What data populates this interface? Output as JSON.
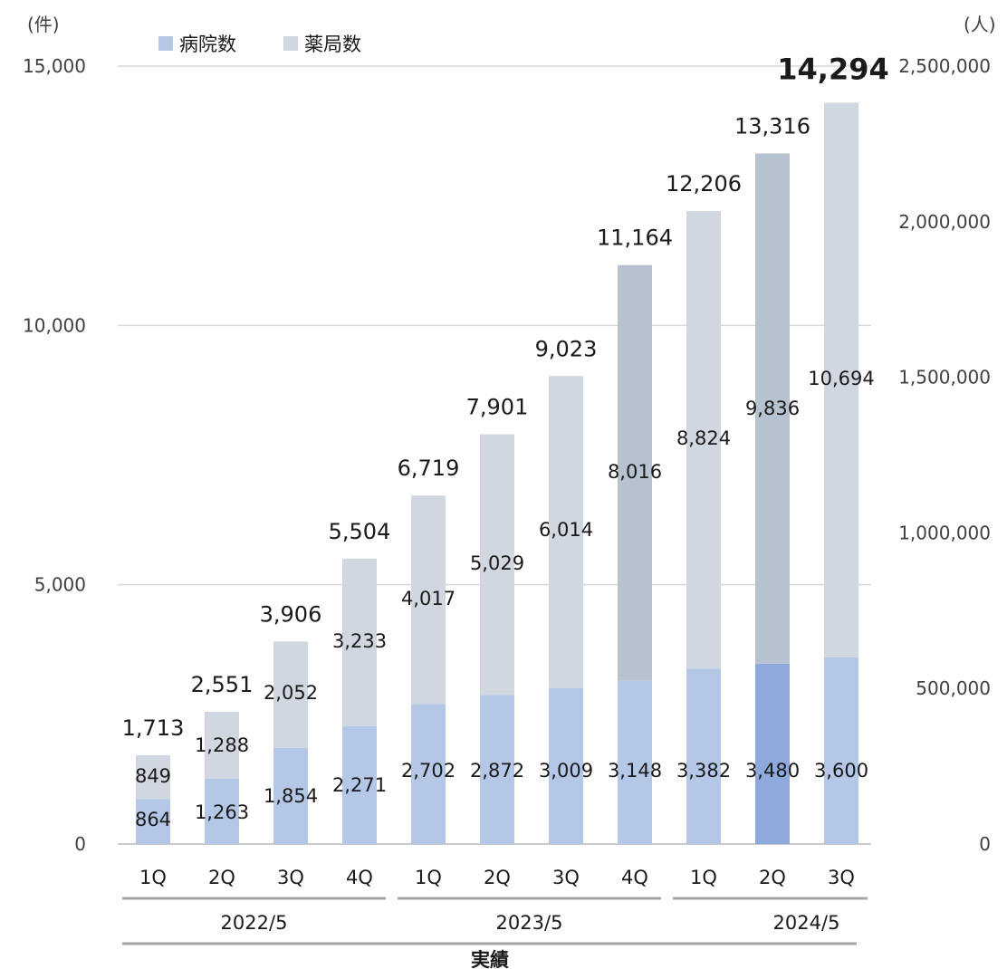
{
  "chart_data": {
    "type": "bar",
    "stacked": true,
    "left_axis_unit": "(件)",
    "right_axis_unit": "(人)",
    "left_ylim": [
      0,
      15000
    ],
    "left_ticks": [
      "0",
      "5,000",
      "10,000",
      "15,000"
    ],
    "right_ylim": [
      0,
      2500000
    ],
    "right_ticks": [
      "0",
      "500,000",
      "1,000,000",
      "1,500,000",
      "2,000,000",
      "2,500,000"
    ],
    "grid": true,
    "legend_position": "top-left",
    "categories": [
      "1Q",
      "2Q",
      "3Q",
      "4Q",
      "1Q",
      "2Q",
      "3Q",
      "4Q",
      "1Q",
      "2Q",
      "3Q"
    ],
    "fiscal_years": [
      {
        "label": "2022/5",
        "start": 0,
        "end": 3
      },
      {
        "label": "2023/5",
        "start": 4,
        "end": 7
      },
      {
        "label": "2024/5",
        "start": 8,
        "end": 10
      }
    ],
    "group_label": "実績",
    "series": [
      {
        "name": "病院数",
        "color": "#b4c7e7",
        "values": [
          864,
          1263,
          1854,
          2271,
          2702,
          2872,
          3009,
          3148,
          3382,
          3480,
          3600
        ],
        "labels": [
          "864",
          "1,263",
          "1,854",
          "2,271",
          "2,702",
          "2,872",
          "3,009",
          "3,148",
          "3,382",
          "3,480",
          "3,600"
        ]
      },
      {
        "name": "薬局数",
        "color": "#d0d7e0",
        "values": [
          849,
          1288,
          2052,
          3233,
          4017,
          5029,
          6014,
          8016,
          8824,
          9836,
          10694
        ],
        "labels": [
          "849",
          "1,288",
          "2,052",
          "3,233",
          "4,017",
          "5,029",
          "6,014",
          "8,016",
          "8,824",
          "9,836",
          "10,694"
        ]
      }
    ],
    "totals": [
      1713,
      2551,
      3906,
      5504,
      6719,
      7901,
      9023,
      11164,
      12206,
      13316,
      14294
    ],
    "total_labels": [
      "1,713",
      "2,551",
      "3,906",
      "5,504",
      "6,719",
      "7,901",
      "9,023",
      "11,164",
      "12,206",
      "13,316",
      "14,294"
    ],
    "highlight_colors": {
      "4Q_2023_pharmacy": "#b6c2cf",
      "2Q_2024_hospital": "#8eaadc",
      "2Q_2024_pharmacy": "#b6c2cf"
    }
  }
}
